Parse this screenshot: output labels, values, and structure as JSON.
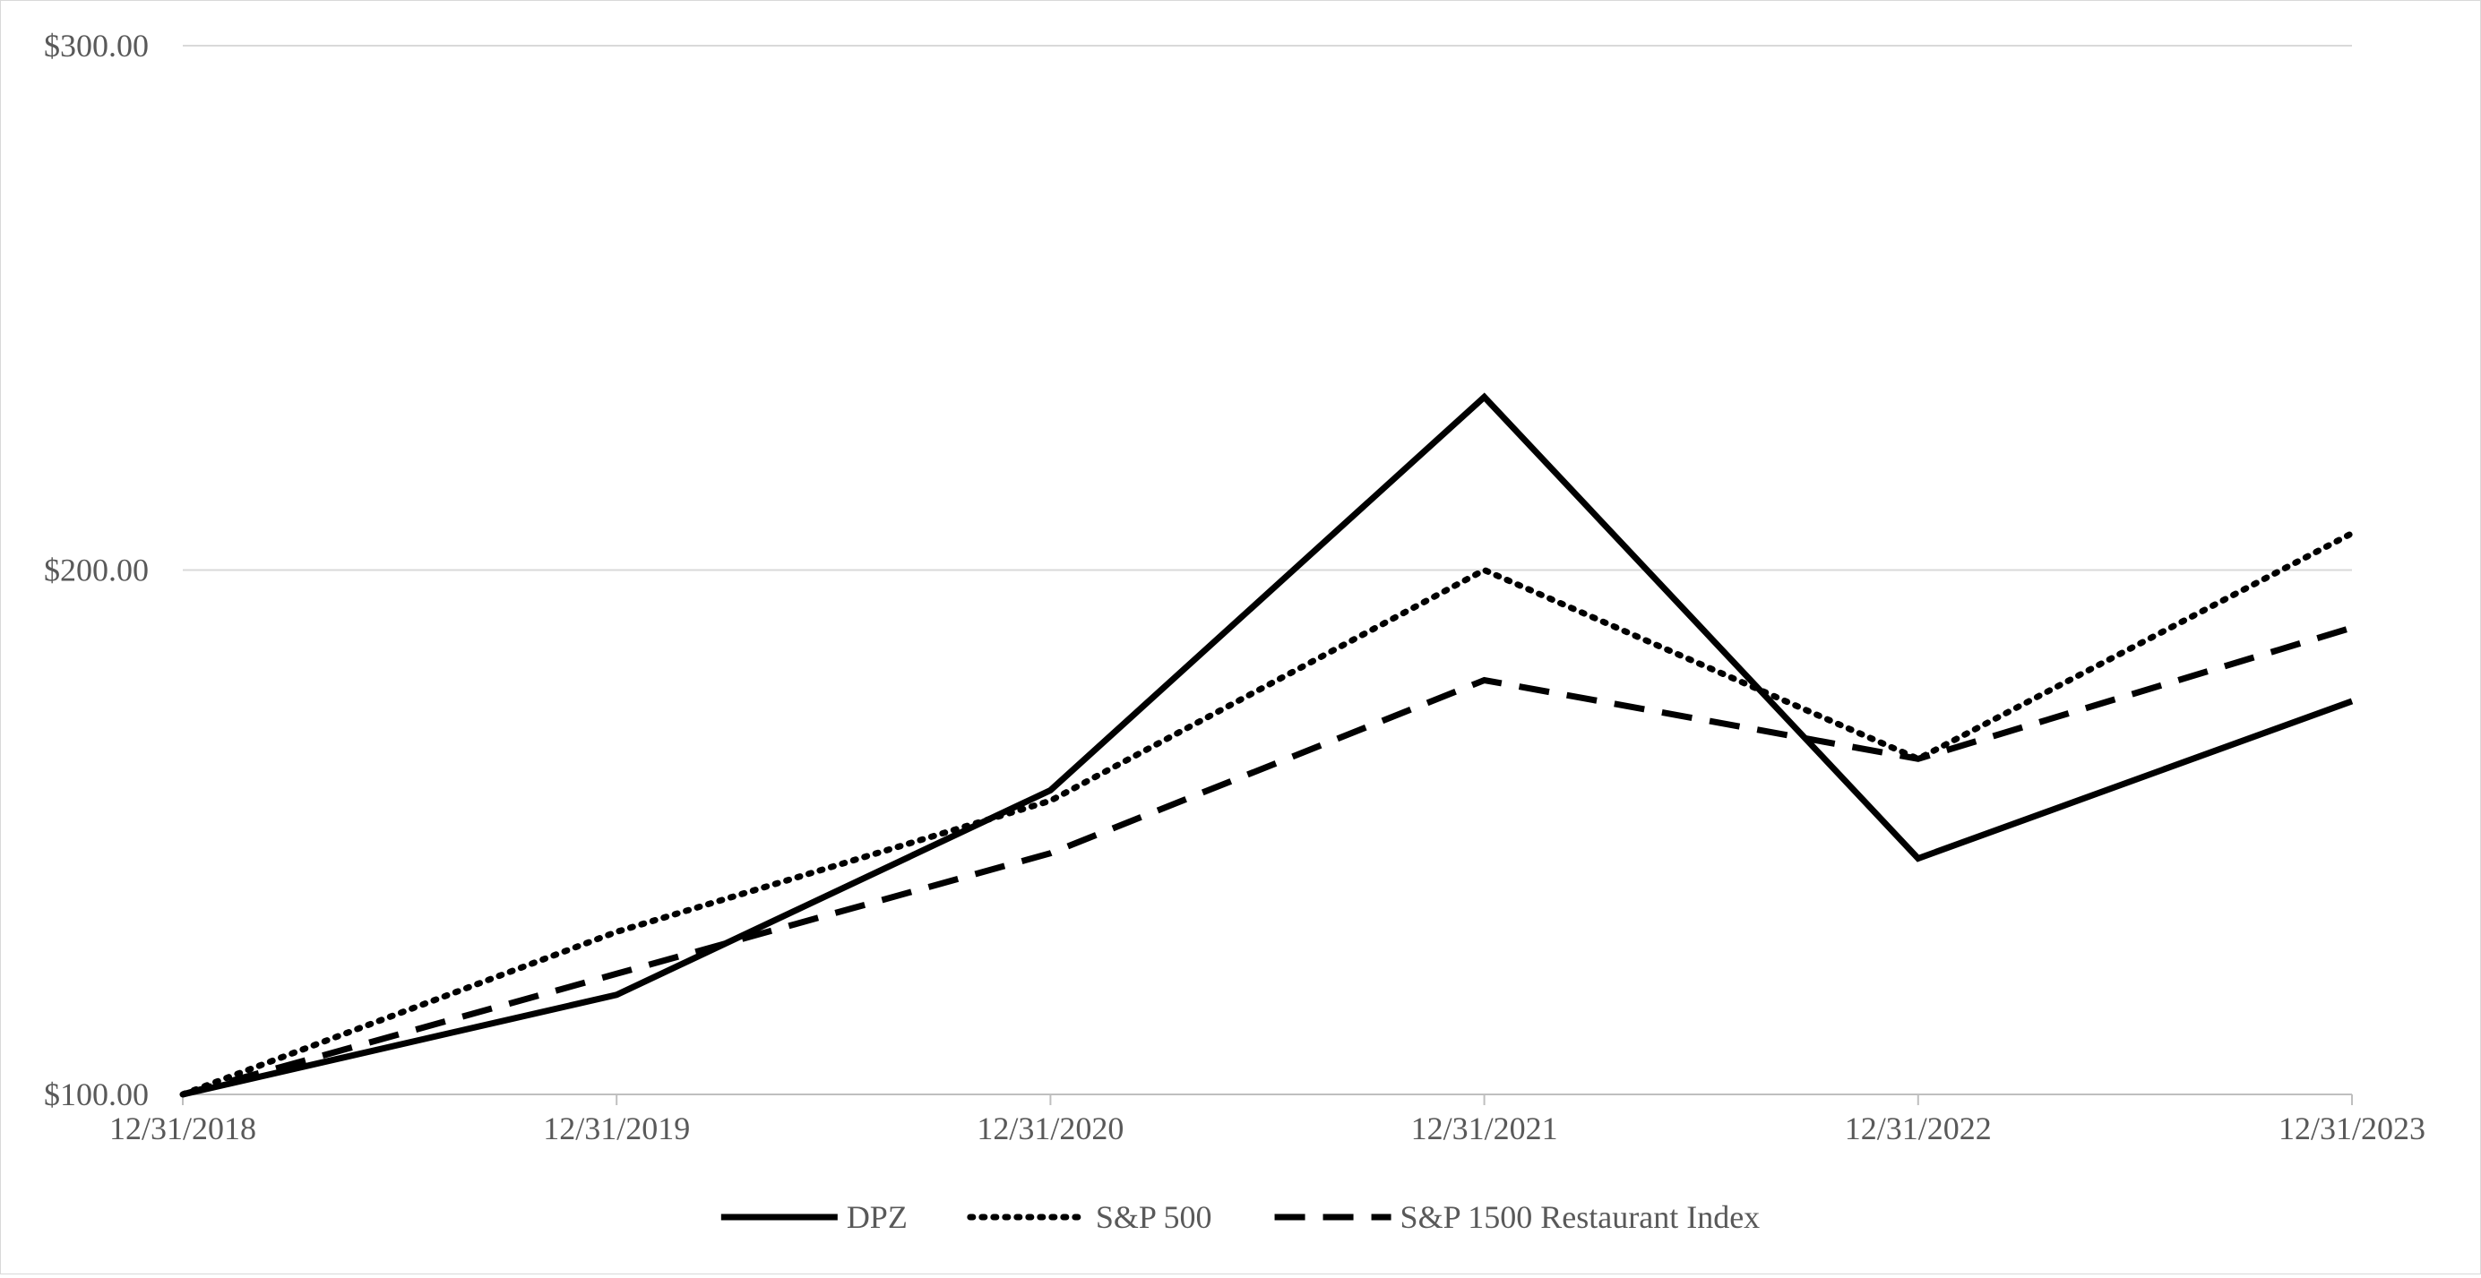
{
  "chart_data": {
    "type": "line",
    "title": "",
    "xlabel": "",
    "ylabel": "",
    "categories": [
      "12/31/2018",
      "12/31/2019",
      "12/31/2020",
      "12/31/2021",
      "12/31/2022",
      "12/31/2023"
    ],
    "ylim": [
      100,
      300
    ],
    "y_ticks": [
      {
        "value": 100,
        "label": "$100.00"
      },
      {
        "value": 200,
        "label": "$200.00"
      },
      {
        "value": 300,
        "label": "$300.00"
      }
    ],
    "grid": true,
    "legend_position": "bottom",
    "series": [
      {
        "name": "DPZ",
        "style": "solid",
        "color": "#000000",
        "values": [
          100,
          119,
          158,
          233,
          145,
          175
        ]
      },
      {
        "name": "S&P 500",
        "style": "dotted",
        "color": "#000000",
        "values": [
          100,
          131,
          156,
          200,
          164,
          207
        ]
      },
      {
        "name": "S&P 1500 Restaurant Index",
        "style": "dashed",
        "color": "#000000",
        "values": [
          100,
          123,
          146,
          179,
          164,
          189
        ]
      }
    ]
  }
}
